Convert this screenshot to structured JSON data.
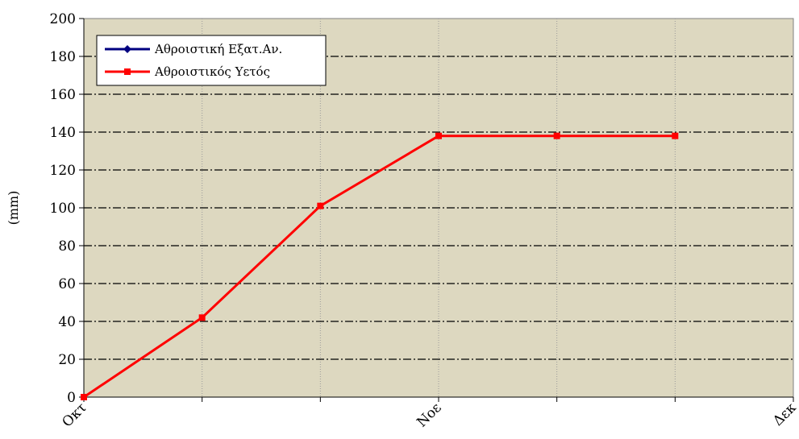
{
  "chart_data": {
    "type": "line",
    "title": "",
    "xlabel": "",
    "ylabel": "(mm)",
    "ylim": [
      0,
      200
    ],
    "yticks": [
      0,
      20,
      40,
      60,
      80,
      100,
      120,
      140,
      160,
      180,
      200
    ],
    "x_categories": [
      "Οκτ",
      "",
      "",
      "Νοε",
      "",
      "",
      "Δεκ"
    ],
    "grid": {
      "horizontal": true,
      "vertical": true
    },
    "legend": {
      "position": "top-left"
    },
    "colors": {
      "plot_bg": "#ddd8c0",
      "grid": "#000000",
      "axis": "#000000"
    },
    "series": [
      {
        "name": "Αθροιστική Εξατ.Αν.",
        "color": "#000080",
        "marker": "diamond",
        "values": []
      },
      {
        "name": "Αθροιστικός Υετός",
        "color": "#ff0000",
        "marker": "square",
        "values": [
          0,
          42,
          101,
          138,
          138,
          138
        ]
      }
    ]
  }
}
